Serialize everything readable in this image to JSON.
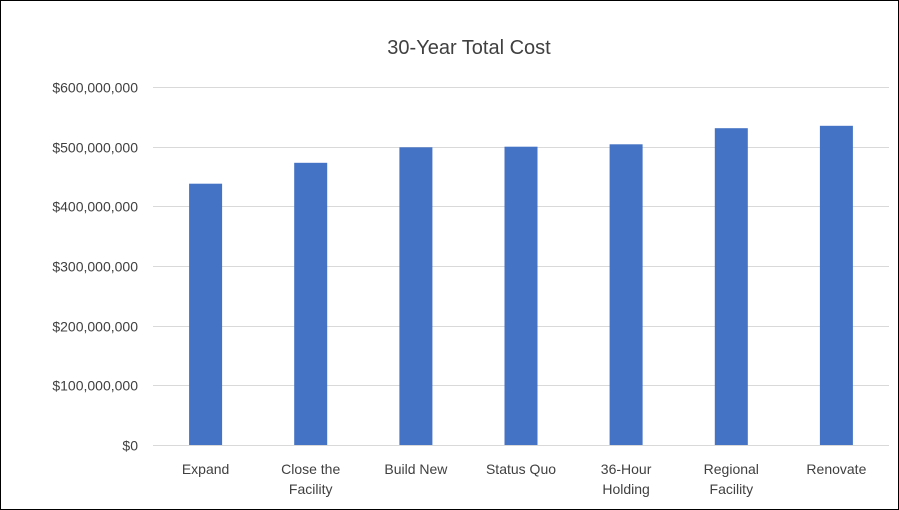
{
  "chart_data": {
    "type": "bar",
    "title": "30-Year Total Cost",
    "xlabel": "",
    "ylabel": "",
    "categories": [
      [
        "Expand"
      ],
      [
        "Close the",
        "Facility"
      ],
      [
        "Build New"
      ],
      [
        "Status Quo"
      ],
      [
        "36-Hour",
        "Holding"
      ],
      [
        "Regional",
        "Facility"
      ],
      [
        "Renovate"
      ]
    ],
    "values": [
      438000000,
      473000000,
      499000000,
      500000000,
      504000000,
      531000000,
      535000000
    ],
    "ylim": [
      0,
      600000000
    ],
    "yticks": [
      0,
      100000000,
      200000000,
      300000000,
      400000000,
      500000000,
      600000000
    ],
    "ytick_labels": [
      "$0",
      "$100,000,000",
      "$200,000,000",
      "$300,000,000",
      "$400,000,000",
      "$500,000,000",
      "$600,000,000"
    ],
    "grid": true,
    "legend": "none",
    "colors": {
      "bar": "#4472c4",
      "grid": "#d9d9d9",
      "text": "#404040"
    }
  }
}
